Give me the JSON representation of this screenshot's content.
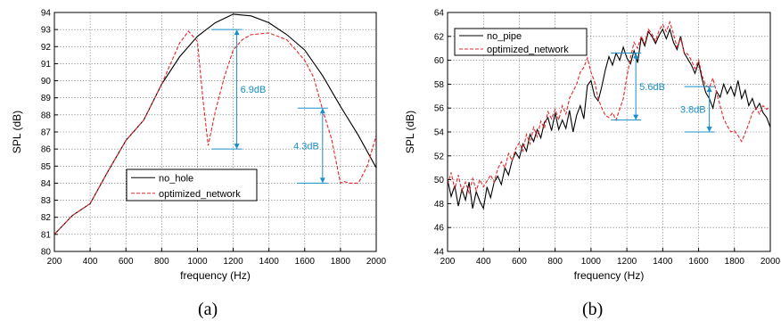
{
  "chart_data": [
    {
      "type": "line",
      "caption": "(a)",
      "xlabel": "frequency (Hz)",
      "ylabel": "SPL (dB)",
      "xlim": [
        200,
        2000
      ],
      "ylim": [
        80,
        94
      ],
      "xticks": [
        200,
        400,
        600,
        800,
        1000,
        1200,
        1400,
        1600,
        1800,
        2000
      ],
      "yticks": [
        80,
        81,
        82,
        83,
        84,
        85,
        86,
        87,
        88,
        89,
        90,
        91,
        92,
        93,
        94
      ],
      "grid": true,
      "legend_position": "bottom-center",
      "series": [
        {
          "name": "no_hole",
          "color": "#000000",
          "dash": "solid",
          "x": [
            200,
            300,
            400,
            500,
            600,
            700,
            800,
            900,
            1000,
            1100,
            1200,
            1300,
            1400,
            1500,
            1600,
            1700,
            1800,
            1900,
            2000
          ],
          "y": [
            81.0,
            82.1,
            82.8,
            84.7,
            86.5,
            87.7,
            89.8,
            91.4,
            92.6,
            93.4,
            93.9,
            93.8,
            93.4,
            92.7,
            91.8,
            90.3,
            88.5,
            86.8,
            84.9
          ]
        },
        {
          "name": "optimized_network",
          "color": "#e8262a",
          "dash": "dashed",
          "x": [
            200,
            300,
            400,
            500,
            600,
            700,
            800,
            900,
            950,
            1000,
            1030,
            1060,
            1100,
            1150,
            1200,
            1250,
            1300,
            1400,
            1500,
            1600,
            1650,
            1700,
            1750,
            1800,
            1820,
            1850,
            1900,
            1950,
            2000
          ],
          "y": [
            81.0,
            82.1,
            82.8,
            84.7,
            86.5,
            87.7,
            89.8,
            92.2,
            92.9,
            92.3,
            89.0,
            86.2,
            88.2,
            90.2,
            91.8,
            92.4,
            92.7,
            92.8,
            92.4,
            91.2,
            90.2,
            88.3,
            86.6,
            84.0,
            84.1,
            84.0,
            84.0,
            85.0,
            86.8
          ]
        }
      ],
      "annotations": [
        {
          "text": "6.9dB",
          "x": 1220,
          "y_top": 93.0,
          "y_bottom": 86.0
        },
        {
          "text": "4.3dB",
          "x": 1700,
          "y_top": 88.4,
          "y_bottom": 84.0
        }
      ]
    },
    {
      "type": "line",
      "caption": "(b)",
      "xlabel": "frequency (Hz)",
      "ylabel": "SPL (dB)",
      "xlim": [
        200,
        2000
      ],
      "ylim": [
        44,
        64
      ],
      "xticks": [
        200,
        400,
        600,
        800,
        1000,
        1200,
        1400,
        1600,
        1800,
        2000
      ],
      "yticks": [
        44,
        46,
        48,
        50,
        52,
        54,
        56,
        58,
        60,
        62,
        64
      ],
      "grid": true,
      "legend_position": "top-left",
      "series": [
        {
          "name": "no_pipe",
          "color": "#000000",
          "dash": "solid",
          "x": [
            200,
            220,
            240,
            260,
            280,
            300,
            320,
            340,
            360,
            380,
            400,
            420,
            440,
            460,
            480,
            500,
            520,
            540,
            560,
            580,
            600,
            620,
            640,
            660,
            680,
            700,
            720,
            740,
            760,
            780,
            800,
            820,
            840,
            860,
            880,
            900,
            920,
            940,
            960,
            980,
            1000,
            1020,
            1040,
            1060,
            1080,
            1100,
            1120,
            1140,
            1160,
            1180,
            1200,
            1220,
            1240,
            1260,
            1280,
            1300,
            1320,
            1340,
            1360,
            1380,
            1400,
            1420,
            1440,
            1460,
            1480,
            1500,
            1520,
            1540,
            1560,
            1580,
            1600,
            1620,
            1640,
            1660,
            1680,
            1700,
            1720,
            1740,
            1760,
            1780,
            1800,
            1820,
            1840,
            1860,
            1880,
            1900,
            1920,
            1940,
            1960,
            1980,
            2000
          ],
          "y": [
            50.0,
            48.6,
            49.5,
            47.8,
            49.2,
            48.3,
            49.8,
            47.6,
            49.0,
            48.2,
            47.6,
            49.4,
            48.5,
            49.8,
            50.3,
            49.6,
            51.0,
            50.4,
            51.6,
            52.3,
            51.8,
            53.0,
            52.4,
            53.8,
            53.2,
            54.2,
            53.5,
            54.8,
            55.2,
            54.1,
            55.6,
            54.2,
            55.0,
            54.3,
            55.8,
            54.0,
            55.4,
            56.2,
            55.1,
            57.9,
            58.3,
            57.0,
            56.6,
            57.8,
            59.2,
            60.3,
            59.6,
            60.6,
            60.0,
            61.1,
            60.2,
            59.7,
            60.8,
            59.8,
            61.9,
            61.2,
            62.4,
            62.0,
            61.4,
            62.1,
            62.6,
            61.8,
            62.6,
            61.5,
            60.9,
            62.0,
            60.6,
            60.1,
            59.6,
            58.9,
            59.8,
            58.4,
            57.3,
            56.8,
            56.0,
            57.4,
            56.9,
            58.0,
            57.2,
            57.8,
            57.0,
            58.3,
            56.8,
            57.5,
            56.2,
            56.8,
            55.9,
            56.4,
            55.6,
            55.2,
            54.4
          ]
        },
        {
          "name": "optimized_network",
          "color": "#e8262a",
          "dash": "dashed",
          "x": [
            200,
            220,
            240,
            260,
            280,
            300,
            320,
            340,
            360,
            380,
            400,
            420,
            440,
            460,
            480,
            500,
            520,
            540,
            560,
            580,
            600,
            620,
            640,
            660,
            680,
            700,
            720,
            740,
            760,
            780,
            800,
            820,
            840,
            860,
            880,
            900,
            920,
            940,
            960,
            980,
            1000,
            1020,
            1040,
            1060,
            1080,
            1100,
            1120,
            1140,
            1160,
            1180,
            1200,
            1220,
            1240,
            1260,
            1280,
            1300,
            1320,
            1340,
            1360,
            1380,
            1400,
            1420,
            1440,
            1460,
            1480,
            1500,
            1520,
            1540,
            1560,
            1580,
            1600,
            1620,
            1640,
            1660,
            1680,
            1700,
            1720,
            1740,
            1760,
            1780,
            1800,
            1820,
            1840,
            1860,
            1880,
            1900,
            1920,
            1940,
            1960,
            1980,
            2000
          ],
          "y": [
            49.6,
            50.6,
            49.2,
            50.4,
            49.0,
            49.8,
            48.9,
            50.1,
            49.1,
            50.0,
            49.4,
            49.9,
            50.4,
            49.8,
            50.9,
            51.5,
            51.0,
            52.2,
            51.6,
            52.6,
            53.1,
            52.4,
            53.8,
            53.0,
            54.4,
            53.6,
            54.9,
            54.3,
            55.7,
            55.1,
            55.9,
            55.0,
            56.2,
            55.5,
            56.8,
            57.4,
            58.0,
            59.0,
            59.4,
            60.2,
            59.0,
            58.2,
            56.8,
            56.0,
            55.4,
            55.2,
            55.6,
            55.0,
            55.9,
            56.8,
            58.6,
            60.2,
            61.5,
            61.0,
            62.0,
            61.4,
            62.6,
            62.2,
            61.6,
            62.5,
            63.0,
            62.4,
            63.2,
            62.2,
            61.1,
            61.8,
            60.7,
            60.5,
            60.0,
            59.3,
            60.0,
            58.7,
            57.9,
            57.7,
            58.5,
            57.3,
            56.2,
            55.1,
            54.5,
            54.0,
            54.1,
            53.7,
            53.2,
            53.9,
            54.7,
            55.6,
            56.0,
            55.5,
            56.2,
            55.9,
            56.1
          ]
        }
      ],
      "annotations": [
        {
          "text": "5.6dB",
          "x": 1250,
          "y_top": 60.6,
          "y_bottom": 55.0
        },
        {
          "text": "3.8dB",
          "x": 1660,
          "y_top": 57.8,
          "y_bottom": 54.0
        }
      ]
    }
  ]
}
